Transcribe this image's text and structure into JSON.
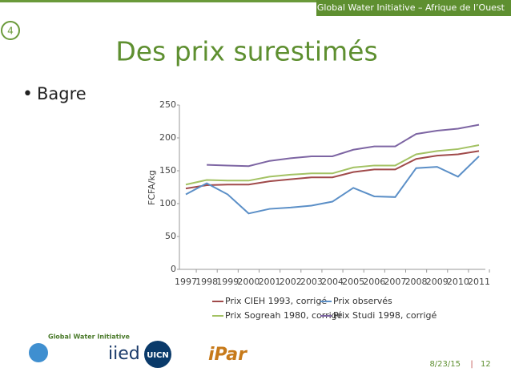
{
  "header": {
    "text": "Global Water Initiative – Afrique de l’Ouest"
  },
  "slide_number": "4",
  "bullet": "Bagre",
  "footer": {
    "date": "8/23/15",
    "separator": "|",
    "page": "12"
  },
  "logos": [
    "Global Water Initiative",
    "iied",
    "UICN",
    "iPar"
  ],
  "chart_data": {
    "type": "line",
    "title": "Des prix surestimés",
    "y_label": "FCFA/kg",
    "categories": [
      "1997",
      "1998",
      "1999",
      "2000",
      "2001",
      "2002",
      "2003",
      "2004",
      "2005",
      "2006",
      "2007",
      "2008",
      "2009",
      "2010",
      "2011"
    ],
    "series": [
      {
        "name": "Prix CIEH 1993, corrigé",
        "color": "#a04a4a",
        "values": [
          123,
          128,
          129,
          129,
          134,
          137,
          140,
          140,
          148,
          152,
          152,
          168,
          173,
          175,
          180
        ]
      },
      {
        "name": "Prix observés",
        "color": "#5b8fc7",
        "values": [
          114,
          131,
          114,
          85,
          92,
          94,
          97,
          103,
          124,
          111,
          110,
          154,
          156,
          141,
          172
        ]
      },
      {
        "name": "Prix Sogreah 1980, corrigé",
        "color": "#a3c263",
        "values": [
          129,
          136,
          135,
          135,
          141,
          144,
          146,
          146,
          155,
          158,
          158,
          175,
          180,
          183,
          189
        ]
      },
      {
        "name": "Prix Studi 1998, corrigé",
        "color": "#7d65a3",
        "values": [
          null,
          159,
          158,
          157,
          165,
          169,
          172,
          172,
          182,
          187,
          187,
          206,
          211,
          214,
          220
        ]
      }
    ],
    "ylim": [
      0,
      250
    ],
    "yticks": [
      0,
      50,
      100,
      150,
      200,
      250
    ],
    "grid": false
  }
}
